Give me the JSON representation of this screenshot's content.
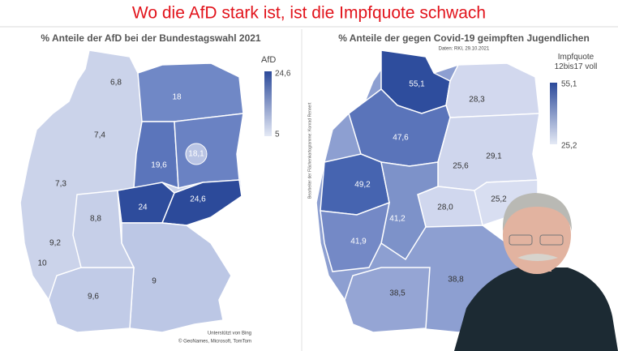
{
  "title": "Wo die AfD stark ist, ist die Impfquote schwach",
  "side_note": "Bearbeiter der Flächenkartogramme: Konrad Rennert",
  "maps": [
    {
      "title": "% Anteile der AfD bei der Bundestagswahl 2021",
      "legend_title": "AfD",
      "legend_max": "24,6",
      "legend_min": "5",
      "regions": [
        "6,8",
        "18",
        "7,4",
        "18,1",
        "19,6",
        "7,3",
        "24",
        "24,6",
        "8,8",
        "9,2",
        "10",
        "9,6",
        "9"
      ],
      "credit": [
        "Unterstützt von Bing",
        "© GeoNames, Microsoft, TomTom"
      ]
    },
    {
      "title": "% Anteile der gegen Covid-19 geimpften Jugendlichen",
      "subtitle": "Daten: RKI, 29.10.2021",
      "legend_title": "Impfquote 12bis17 voll",
      "legend_max": "55,1",
      "legend_min": "25,2",
      "regions": [
        "55,1",
        "28,3",
        "47,6",
        "29,1",
        "25,6",
        "49,2",
        "25,2",
        "28,0",
        "41,2",
        "41,9",
        "38,8",
        "38,5"
      ]
    }
  ]
}
